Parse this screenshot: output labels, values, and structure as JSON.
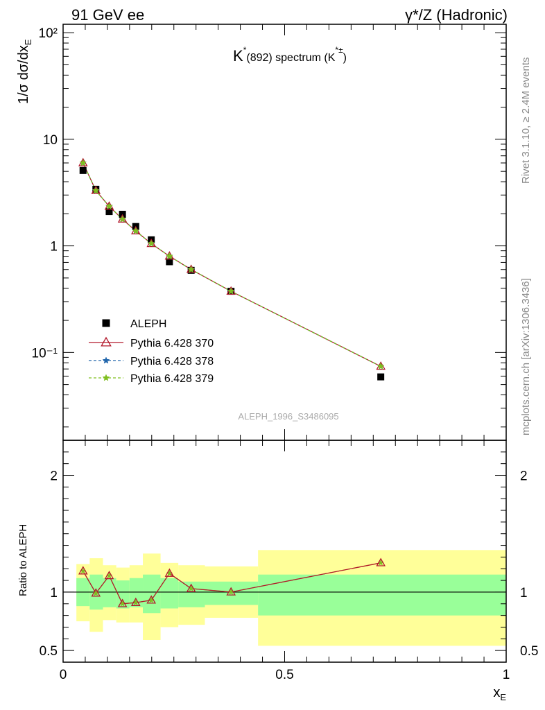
{
  "header": {
    "left": "91 GeV ee",
    "right": "γ*/Z (Hadronic)"
  },
  "side_labels": {
    "rivet": "Rivet 3.1.10, ≥ 2.4M events",
    "mcplots": "mcplots.cern.ch [arXiv:1306.3436]"
  },
  "chart_data": [
    {
      "type": "line",
      "title": "K*(892) spectrum (K*±)",
      "title_parts": {
        "main": "K",
        "sup": "*",
        "mid": "(892) spectrum (K",
        "sup2": "*±",
        "end": ")"
      },
      "watermark": "ALEPH_1996_S3486095",
      "ylabel": "1/σ dσ/dx_E",
      "yscale": "log",
      "ylim": [
        0.015,
        120
      ],
      "xlim": [
        0,
        1
      ],
      "y_tick_labels": [
        "10⁻¹",
        "1",
        "10",
        "10²"
      ],
      "legend_position": "lower-left",
      "series": [
        {
          "name": "ALEPH",
          "marker": "square",
          "color": "#000000",
          "x": [
            0.045,
            0.074,
            0.104,
            0.134,
            0.164,
            0.199,
            0.24,
            0.289,
            0.379,
            0.717
          ],
          "y": [
            5.1,
            3.4,
            2.1,
            1.98,
            1.52,
            1.14,
            0.71,
            0.59,
            0.375,
            0.059
          ]
        },
        {
          "name": "Pythia 6.428 370",
          "marker": "triangle",
          "color": "#b2182b",
          "x": [
            0.045,
            0.074,
            0.104,
            0.134,
            0.164,
            0.199,
            0.24,
            0.289,
            0.379,
            0.717
          ],
          "y": [
            6.0,
            3.3,
            2.35,
            1.78,
            1.38,
            1.05,
            0.8,
            0.6,
            0.375,
            0.074
          ]
        },
        {
          "name": "Pythia 6.428 378",
          "marker": "star",
          "color": "#2166ac",
          "x": [
            0.045,
            0.074,
            0.104,
            0.134,
            0.164,
            0.199,
            0.24,
            0.289,
            0.379,
            0.717
          ],
          "y": [
            6.0,
            3.3,
            2.35,
            1.78,
            1.38,
            1.05,
            0.8,
            0.6,
            0.375,
            0.074
          ]
        },
        {
          "name": "Pythia 6.428 379",
          "marker": "star",
          "color": "#7fbf1f",
          "x": [
            0.045,
            0.074,
            0.104,
            0.134,
            0.164,
            0.199,
            0.24,
            0.289,
            0.379,
            0.717
          ],
          "y": [
            6.0,
            3.3,
            2.35,
            1.78,
            1.38,
            1.05,
            0.8,
            0.6,
            0.375,
            0.074
          ]
        }
      ]
    },
    {
      "type": "line",
      "ylabel": "Ratio to ALEPH",
      "xlabel": "x_E",
      "xlim": [
        0,
        1
      ],
      "ylim": [
        0.4,
        2.3
      ],
      "y_ticks": [
        0.5,
        1,
        2
      ],
      "y_tick_labels": [
        "0.5",
        "1",
        "2"
      ],
      "x_ticks": [
        0,
        0.5,
        1
      ],
      "x_tick_labels": [
        "0",
        "0.5",
        "1"
      ],
      "reference_line": 1,
      "bands": {
        "edges": [
          0.03,
          0.06,
          0.09,
          0.12,
          0.15,
          0.18,
          0.22,
          0.26,
          0.32,
          0.44,
          1.0
        ],
        "inner_low": [
          0.88,
          0.85,
          0.87,
          0.86,
          0.87,
          0.82,
          0.86,
          0.87,
          0.89,
          0.8
        ],
        "inner_high": [
          1.12,
          1.15,
          1.12,
          1.1,
          1.12,
          1.15,
          1.12,
          1.09,
          1.09,
          1.15
        ],
        "outer_low": [
          0.75,
          0.66,
          0.76,
          0.74,
          0.74,
          0.59,
          0.7,
          0.72,
          0.78,
          0.54
        ],
        "outer_high": [
          1.24,
          1.29,
          1.23,
          1.21,
          1.23,
          1.33,
          1.25,
          1.23,
          1.22,
          1.36
        ],
        "inner_color": "#99ff99",
        "outer_color": "#ffff99"
      },
      "series": [
        {
          "name": "Pythia 6.428 370",
          "color": "#b2182b",
          "x": [
            0.045,
            0.074,
            0.104,
            0.134,
            0.164,
            0.199,
            0.24,
            0.289,
            0.379,
            0.717
          ],
          "y": [
            1.18,
            0.99,
            1.14,
            0.9,
            0.91,
            0.93,
            1.16,
            1.03,
            1.0,
            1.25
          ]
        }
      ]
    }
  ]
}
